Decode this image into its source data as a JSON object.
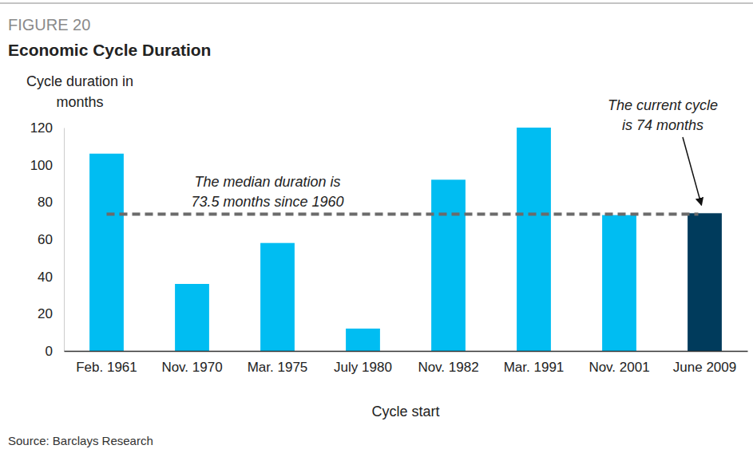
{
  "chart_data": {
    "type": "bar",
    "figure_label": "FIGURE 20",
    "title": "Economic Cycle Duration",
    "ylabel": [
      "Cycle duration in",
      "months"
    ],
    "xlabel": "Cycle start",
    "categories": [
      "Feb. 1961",
      "Nov. 1970",
      "Mar. 1975",
      "July 1980",
      "Nov. 1982",
      "Mar. 1991",
      "Nov. 2001",
      "June 2009"
    ],
    "values": [
      106,
      36,
      58,
      12,
      92,
      120,
      73,
      74
    ],
    "colors": [
      "#00bdf2",
      "#00bdf2",
      "#00bdf2",
      "#00bdf2",
      "#00bdf2",
      "#00bdf2",
      "#00bdf2",
      "#003b5c"
    ],
    "ylim": [
      0,
      120
    ],
    "yticks": [
      0,
      20,
      40,
      60,
      80,
      100,
      120
    ],
    "grid": false,
    "reference_line": 73.5,
    "annotations": [
      {
        "text": [
          "The median duration is",
          "73.5 months since 1960"
        ]
      },
      {
        "text": [
          "The current cycle",
          "is 74 months"
        ],
        "category": "June 2009"
      }
    ],
    "source": "Source: Barclays Research"
  }
}
